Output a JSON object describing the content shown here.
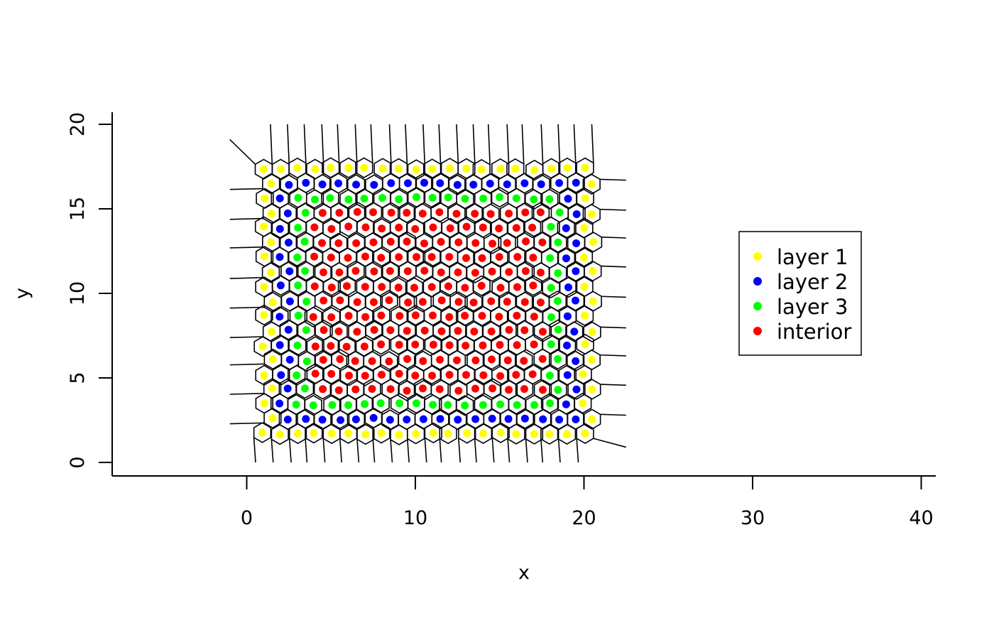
{
  "chart_data": {
    "type": "scatter",
    "title": "",
    "xlabel": "x",
    "ylabel": "y",
    "xlim": [
      -8,
      41
    ],
    "ylim": [
      -0.8,
      20.8
    ],
    "x_ticks": [
      "0",
      "10",
      "20",
      "30",
      "40"
    ],
    "y_ticks": [
      "0",
      "5",
      "10",
      "15",
      "20"
    ],
    "grid": false,
    "legend": {
      "position": "right",
      "entries": [
        "layer 1",
        "layer 2",
        "layer 3",
        "interior"
      ]
    },
    "overlay": "voronoi tessellation (black lines)",
    "point_grid": {
      "layout": "hexagonal lattice",
      "x_min": 1.0,
      "x_spacing": 1.0,
      "y_min": 1.7,
      "y_spacing": 0.87,
      "rows": 19,
      "points_per_row": 20,
      "jitter": 0.15
    },
    "series": [
      {
        "name": "layer 1",
        "color": "#ffff00",
        "rule": "outermost ring of points"
      },
      {
        "name": "layer 2",
        "color": "#0000ff",
        "rule": "second ring"
      },
      {
        "name": "layer 3",
        "color": "#00ff00",
        "rule": "third ring"
      },
      {
        "name": "interior",
        "color": "#ff0000",
        "rule": "all remaining points"
      }
    ]
  }
}
